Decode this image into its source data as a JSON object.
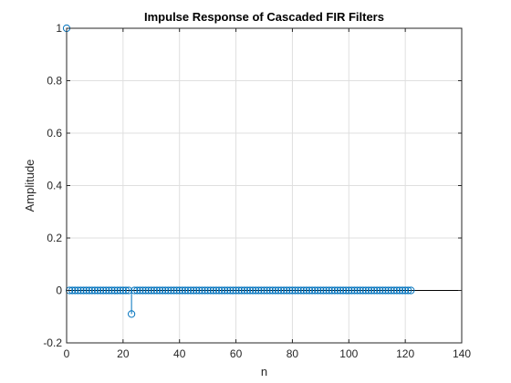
{
  "chart_data": {
    "type": "scatter",
    "style": "stem",
    "title": "Impulse Response of Cascaded FIR Filters",
    "xlabel": "n",
    "ylabel": "Amplitude",
    "xlim": [
      0,
      140
    ],
    "ylim": [
      -0.2,
      1
    ],
    "xticks": [
      0,
      20,
      40,
      60,
      80,
      100,
      120,
      140
    ],
    "yticks": [
      -0.2,
      0,
      0.2,
      0.4,
      0.6,
      0.8,
      1
    ],
    "xtick_labels": [
      "0",
      "20",
      "40",
      "60",
      "80",
      "100",
      "120",
      "140"
    ],
    "ytick_labels": [
      "-0.2",
      "0",
      "0.2",
      "0.4",
      "0.6",
      "0.8",
      "1"
    ],
    "grid": true,
    "baseline": 0,
    "series_color": "#0072BD",
    "n_range": [
      0,
      122
    ],
    "nonzero_points": [
      {
        "x": 0,
        "y": 1.0
      },
      {
        "x": 23,
        "y": -0.09
      }
    ]
  }
}
